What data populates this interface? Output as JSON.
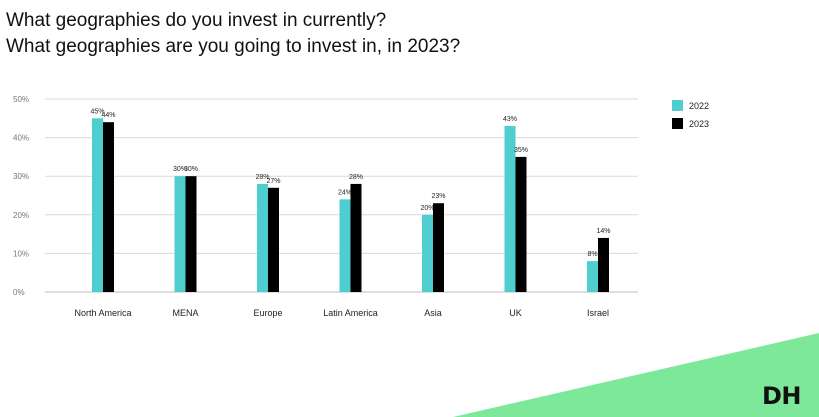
{
  "header": {
    "line1": "What geographies do you invest in currently?",
    "line2": "What geographies are you going to invest in, in 2023?"
  },
  "brand": {
    "logo_text": "DH"
  },
  "colors": {
    "series_2022": "#4ECECE",
    "series_2023": "#000000",
    "accent_green": "#7EE89A",
    "grid": "#DADADA"
  },
  "chart_data": {
    "type": "bar",
    "title": "",
    "xlabel": "",
    "ylabel": "",
    "ylim": [
      0,
      50
    ],
    "yticks": [
      0,
      10,
      20,
      30,
      40,
      50
    ],
    "ytick_labels": [
      "0%",
      "10%",
      "20%",
      "30%",
      "40%",
      "50%"
    ],
    "categories": [
      "North America",
      "MENA",
      "Europe",
      "Latin America",
      "Asia",
      "UK",
      "Israel"
    ],
    "series": [
      {
        "name": "2022",
        "color": "#4ECECE",
        "values": [
          45,
          30,
          28,
          24,
          20,
          43,
          8
        ],
        "labels": [
          "45%",
          "30%",
          "28%",
          "24%",
          "20%",
          "43%",
          "8%"
        ]
      },
      {
        "name": "2023",
        "color": "#000000",
        "values": [
          44,
          30,
          27,
          28,
          23,
          35,
          14
        ],
        "labels": [
          "44%",
          "30%",
          "27%",
          "28%",
          "23%",
          "35%",
          "14%"
        ]
      }
    ],
    "legend_position": "top-right"
  }
}
